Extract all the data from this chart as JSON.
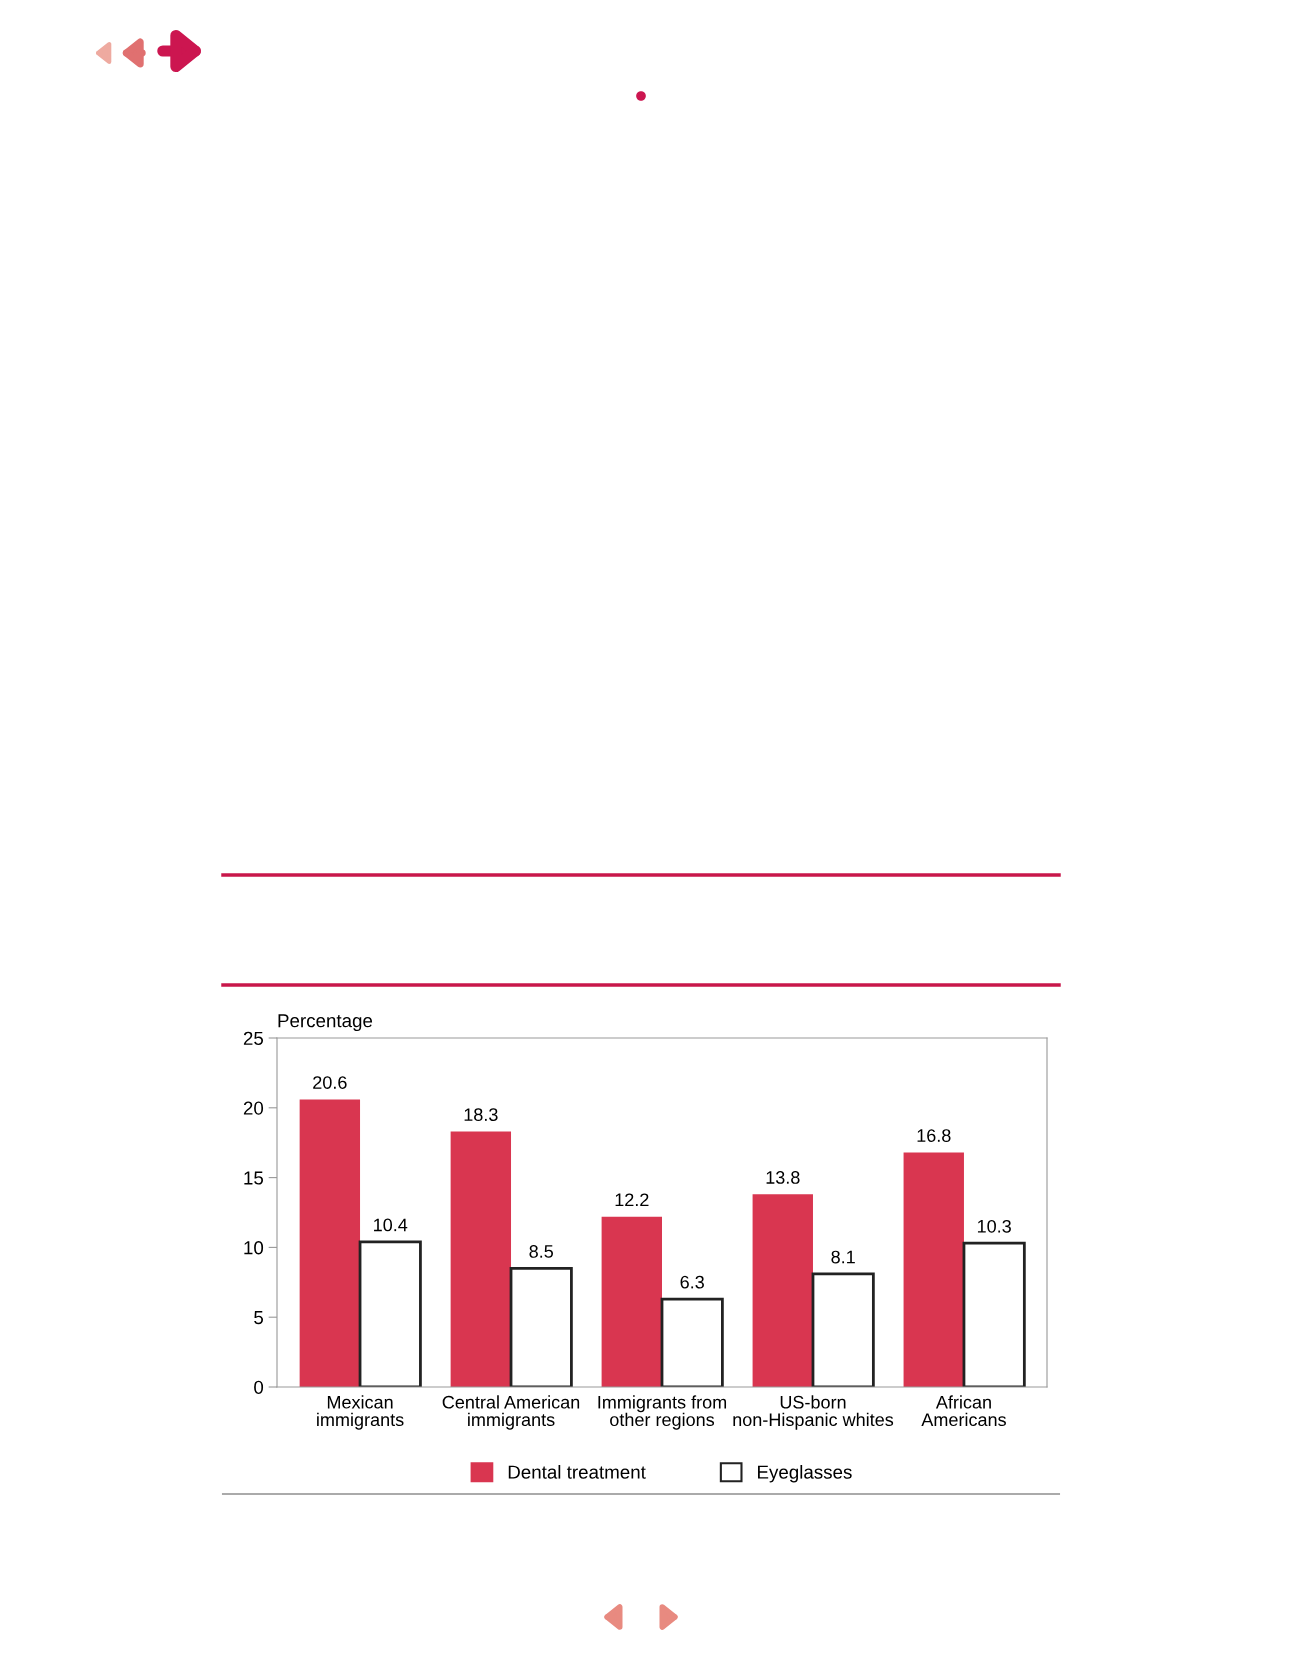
{
  "chart_data": {
    "type": "bar",
    "ylabel": "Percentage",
    "categories": [
      "Mexican\nimmigrants",
      "Central American\nimmigrants",
      "Immigrants from\nother regions",
      "US-born\nnon-Hispanic whites",
      "African\nAmericans"
    ],
    "series": [
      {
        "name": "Dental treatment",
        "color": "#d93650",
        "values": [
          20.6,
          18.3,
          12.2,
          13.8,
          16.8
        ]
      },
      {
        "name": "Eyeglasses",
        "color": "#ffffff",
        "values": [
          10.4,
          8.5,
          6.3,
          8.1,
          10.3
        ]
      }
    ],
    "ylim": [
      0,
      25
    ],
    "yticks": [
      0,
      5,
      10,
      15,
      20,
      25
    ],
    "grid": false,
    "legend": "bottom",
    "data_labels": true
  }
}
